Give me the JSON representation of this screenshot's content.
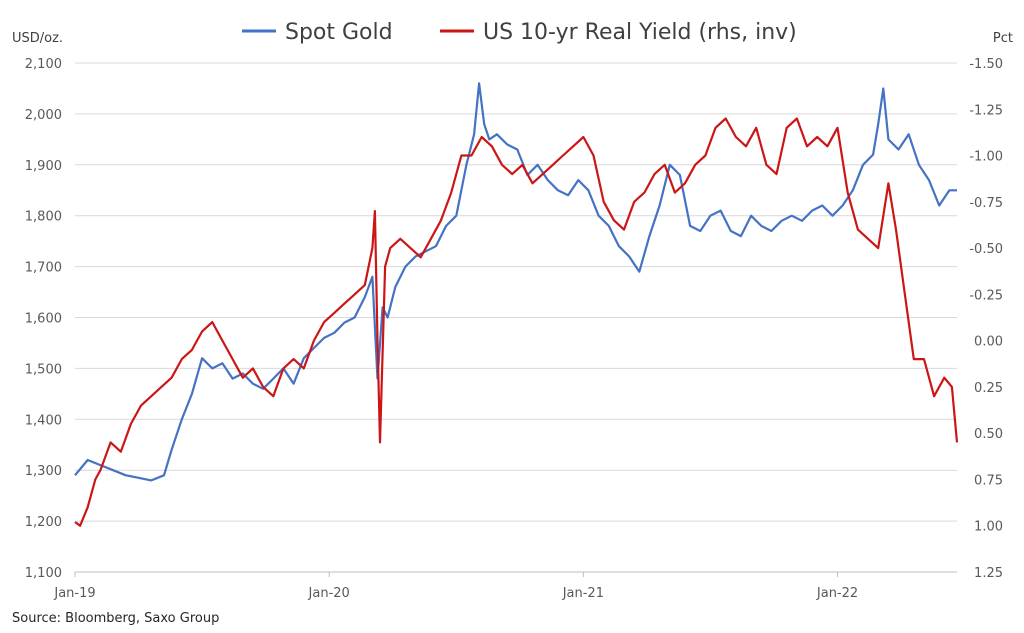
{
  "chart_data": {
    "type": "line",
    "legend_position": "top-center",
    "grid": true,
    "left_axis": {
      "unit": "USD/oz.",
      "ticks": [
        "2,100",
        "2,000",
        "1,900",
        "1,800",
        "1,700",
        "1,600",
        "1,500",
        "1,400",
        "1,300",
        "1,200",
        "1,100"
      ],
      "ylim": [
        1100,
        2100
      ]
    },
    "right_axis": {
      "unit": "Pct",
      "inverted": true,
      "ticks": [
        "-1.50",
        "-1.25",
        "-1.00",
        "-0.75",
        "-0.50",
        "-0.25",
        "0.00",
        "0.25",
        "0.50",
        "0.75",
        "1.00",
        "1.25"
      ],
      "ylim": [
        -1.5,
        1.25
      ]
    },
    "x_ticks": [
      "Jan-19",
      "Jan-20",
      "Jan-21",
      "Jan-22"
    ],
    "x_range": [
      2019.0,
      2022.47
    ],
    "source": "Source: Bloomberg, Saxo Group",
    "series": [
      {
        "name": "Spot Gold",
        "color": "#4472c4",
        "axis": "left",
        "x": [
          2019.0,
          2019.05,
          2019.1,
          2019.15,
          2019.2,
          2019.25,
          2019.3,
          2019.35,
          2019.38,
          2019.42,
          2019.46,
          2019.5,
          2019.54,
          2019.58,
          2019.62,
          2019.66,
          2019.7,
          2019.74,
          2019.78,
          2019.82,
          2019.86,
          2019.9,
          2019.94,
          2019.98,
          2020.02,
          2020.06,
          2020.1,
          2020.14,
          2020.17,
          2020.19,
          2020.21,
          2020.23,
          2020.26,
          2020.3,
          2020.34,
          2020.38,
          2020.42,
          2020.46,
          2020.5,
          2020.54,
          2020.57,
          2020.59,
          2020.61,
          2020.63,
          2020.66,
          2020.7,
          2020.74,
          2020.78,
          2020.82,
          2020.86,
          2020.9,
          2020.94,
          2020.98,
          2021.02,
          2021.06,
          2021.1,
          2021.14,
          2021.18,
          2021.22,
          2021.26,
          2021.3,
          2021.34,
          2021.38,
          2021.42,
          2021.46,
          2021.5,
          2021.54,
          2021.58,
          2021.62,
          2021.66,
          2021.7,
          2021.74,
          2021.78,
          2021.82,
          2021.86,
          2021.9,
          2021.94,
          2021.98,
          2022.02,
          2022.06,
          2022.1,
          2022.14,
          2022.16,
          2022.18,
          2022.2,
          2022.24,
          2022.28,
          2022.32,
          2022.36,
          2022.4,
          2022.44,
          2022.47
        ],
        "values": [
          1290,
          1320,
          1310,
          1300,
          1290,
          1285,
          1280,
          1290,
          1340,
          1400,
          1450,
          1520,
          1500,
          1510,
          1480,
          1490,
          1470,
          1460,
          1480,
          1500,
          1470,
          1520,
          1540,
          1560,
          1570,
          1590,
          1600,
          1640,
          1680,
          1480,
          1620,
          1600,
          1660,
          1700,
          1720,
          1730,
          1740,
          1780,
          1800,
          1900,
          1960,
          2060,
          1980,
          1950,
          1960,
          1940,
          1930,
          1880,
          1900,
          1870,
          1850,
          1840,
          1870,
          1850,
          1800,
          1780,
          1740,
          1720,
          1690,
          1760,
          1820,
          1900,
          1880,
          1780,
          1770,
          1800,
          1810,
          1770,
          1760,
          1800,
          1780,
          1770,
          1790,
          1800,
          1790,
          1810,
          1820,
          1800,
          1820,
          1850,
          1900,
          1920,
          1980,
          2050,
          1950,
          1930,
          1960,
          1900,
          1870,
          1820,
          1850,
          1850
        ]
      },
      {
        "name": "US 10-yr Real Yield (rhs, inv)",
        "color": "#cc1616",
        "axis": "right",
        "x": [
          2019.0,
          2019.02,
          2019.05,
          2019.08,
          2019.1,
          2019.14,
          2019.18,
          2019.22,
          2019.26,
          2019.3,
          2019.34,
          2019.38,
          2019.42,
          2019.46,
          2019.5,
          2019.54,
          2019.58,
          2019.62,
          2019.66,
          2019.7,
          2019.74,
          2019.78,
          2019.82,
          2019.86,
          2019.9,
          2019.94,
          2019.98,
          2020.02,
          2020.06,
          2020.1,
          2020.14,
          2020.17,
          2020.18,
          2020.19,
          2020.2,
          2020.22,
          2020.24,
          2020.28,
          2020.32,
          2020.36,
          2020.4,
          2020.44,
          2020.48,
          2020.52,
          2020.56,
          2020.6,
          2020.64,
          2020.68,
          2020.72,
          2020.76,
          2020.8,
          2020.84,
          2020.88,
          2020.92,
          2020.96,
          2021.0,
          2021.04,
          2021.08,
          2021.12,
          2021.16,
          2021.2,
          2021.24,
          2021.28,
          2021.32,
          2021.36,
          2021.4,
          2021.44,
          2021.48,
          2021.52,
          2021.56,
          2021.6,
          2021.64,
          2021.68,
          2021.72,
          2021.76,
          2021.8,
          2021.84,
          2021.88,
          2021.92,
          2021.96,
          2022.0,
          2022.04,
          2022.08,
          2022.12,
          2022.16,
          2022.2,
          2022.23,
          2022.26,
          2022.3,
          2022.34,
          2022.38,
          2022.42,
          2022.45,
          2022.47
        ],
        "values": [
          0.98,
          1.0,
          0.9,
          0.75,
          0.7,
          0.55,
          0.6,
          0.45,
          0.35,
          0.3,
          0.25,
          0.2,
          0.1,
          0.05,
          -0.05,
          -0.1,
          0.0,
          0.1,
          0.2,
          0.15,
          0.25,
          0.3,
          0.15,
          0.1,
          0.15,
          0.0,
          -0.1,
          -0.15,
          -0.2,
          -0.25,
          -0.3,
          -0.5,
          -0.7,
          0.0,
          0.55,
          -0.4,
          -0.5,
          -0.55,
          -0.5,
          -0.45,
          -0.55,
          -0.65,
          -0.8,
          -1.0,
          -1.0,
          -1.1,
          -1.05,
          -0.95,
          -0.9,
          -0.95,
          -0.85,
          -0.9,
          -0.95,
          -1.0,
          -1.05,
          -1.1,
          -1.0,
          -0.75,
          -0.65,
          -0.6,
          -0.75,
          -0.8,
          -0.9,
          -0.95,
          -0.8,
          -0.85,
          -0.95,
          -1.0,
          -1.15,
          -1.2,
          -1.1,
          -1.05,
          -1.15,
          -0.95,
          -0.9,
          -1.15,
          -1.2,
          -1.05,
          -1.1,
          -1.05,
          -1.15,
          -0.8,
          -0.6,
          -0.55,
          -0.5,
          -0.85,
          -0.6,
          -0.3,
          0.1,
          0.1,
          0.3,
          0.2,
          0.25,
          0.55
        ]
      }
    ]
  }
}
